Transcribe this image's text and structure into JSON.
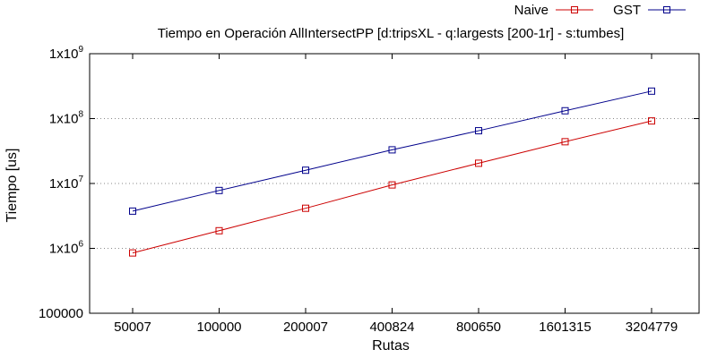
{
  "chart_data": {
    "type": "line",
    "title": "Tiempo en Operación AllIntersectPP [d:tripsXL - q:largests [200-1r] - s:tumbes]",
    "xlabel": "Rutas",
    "ylabel": "Tiempo [us]",
    "categories": [
      "50007",
      "100000",
      "200007",
      "400824",
      "800650",
      "1601315",
      "3204779"
    ],
    "y_scale": "log10",
    "ylim": [
      100000,
      1000000000
    ],
    "y_ticks": [
      {
        "value": 100000,
        "base": "100000",
        "exp": ""
      },
      {
        "value": 1000000,
        "base": "1x10",
        "exp": "6"
      },
      {
        "value": 10000000,
        "base": "1x10",
        "exp": "7"
      },
      {
        "value": 100000000,
        "base": "1x10",
        "exp": "8"
      },
      {
        "value": 1000000000,
        "base": "1x10",
        "exp": "9"
      }
    ],
    "grid": "horizontal dotted",
    "legend_position": "top-right",
    "series": [
      {
        "name": "Naive",
        "color": "#cc0000",
        "marker": "open-square",
        "values": [
          850000,
          1870000,
          4150000,
          9500000,
          20500000,
          44000000,
          92000000
        ]
      },
      {
        "name": "GST",
        "color": "#00008b",
        "marker": "open-square",
        "values": [
          3750000,
          7800000,
          16000000,
          33000000,
          65000000,
          132000000,
          265000000
        ]
      }
    ]
  }
}
